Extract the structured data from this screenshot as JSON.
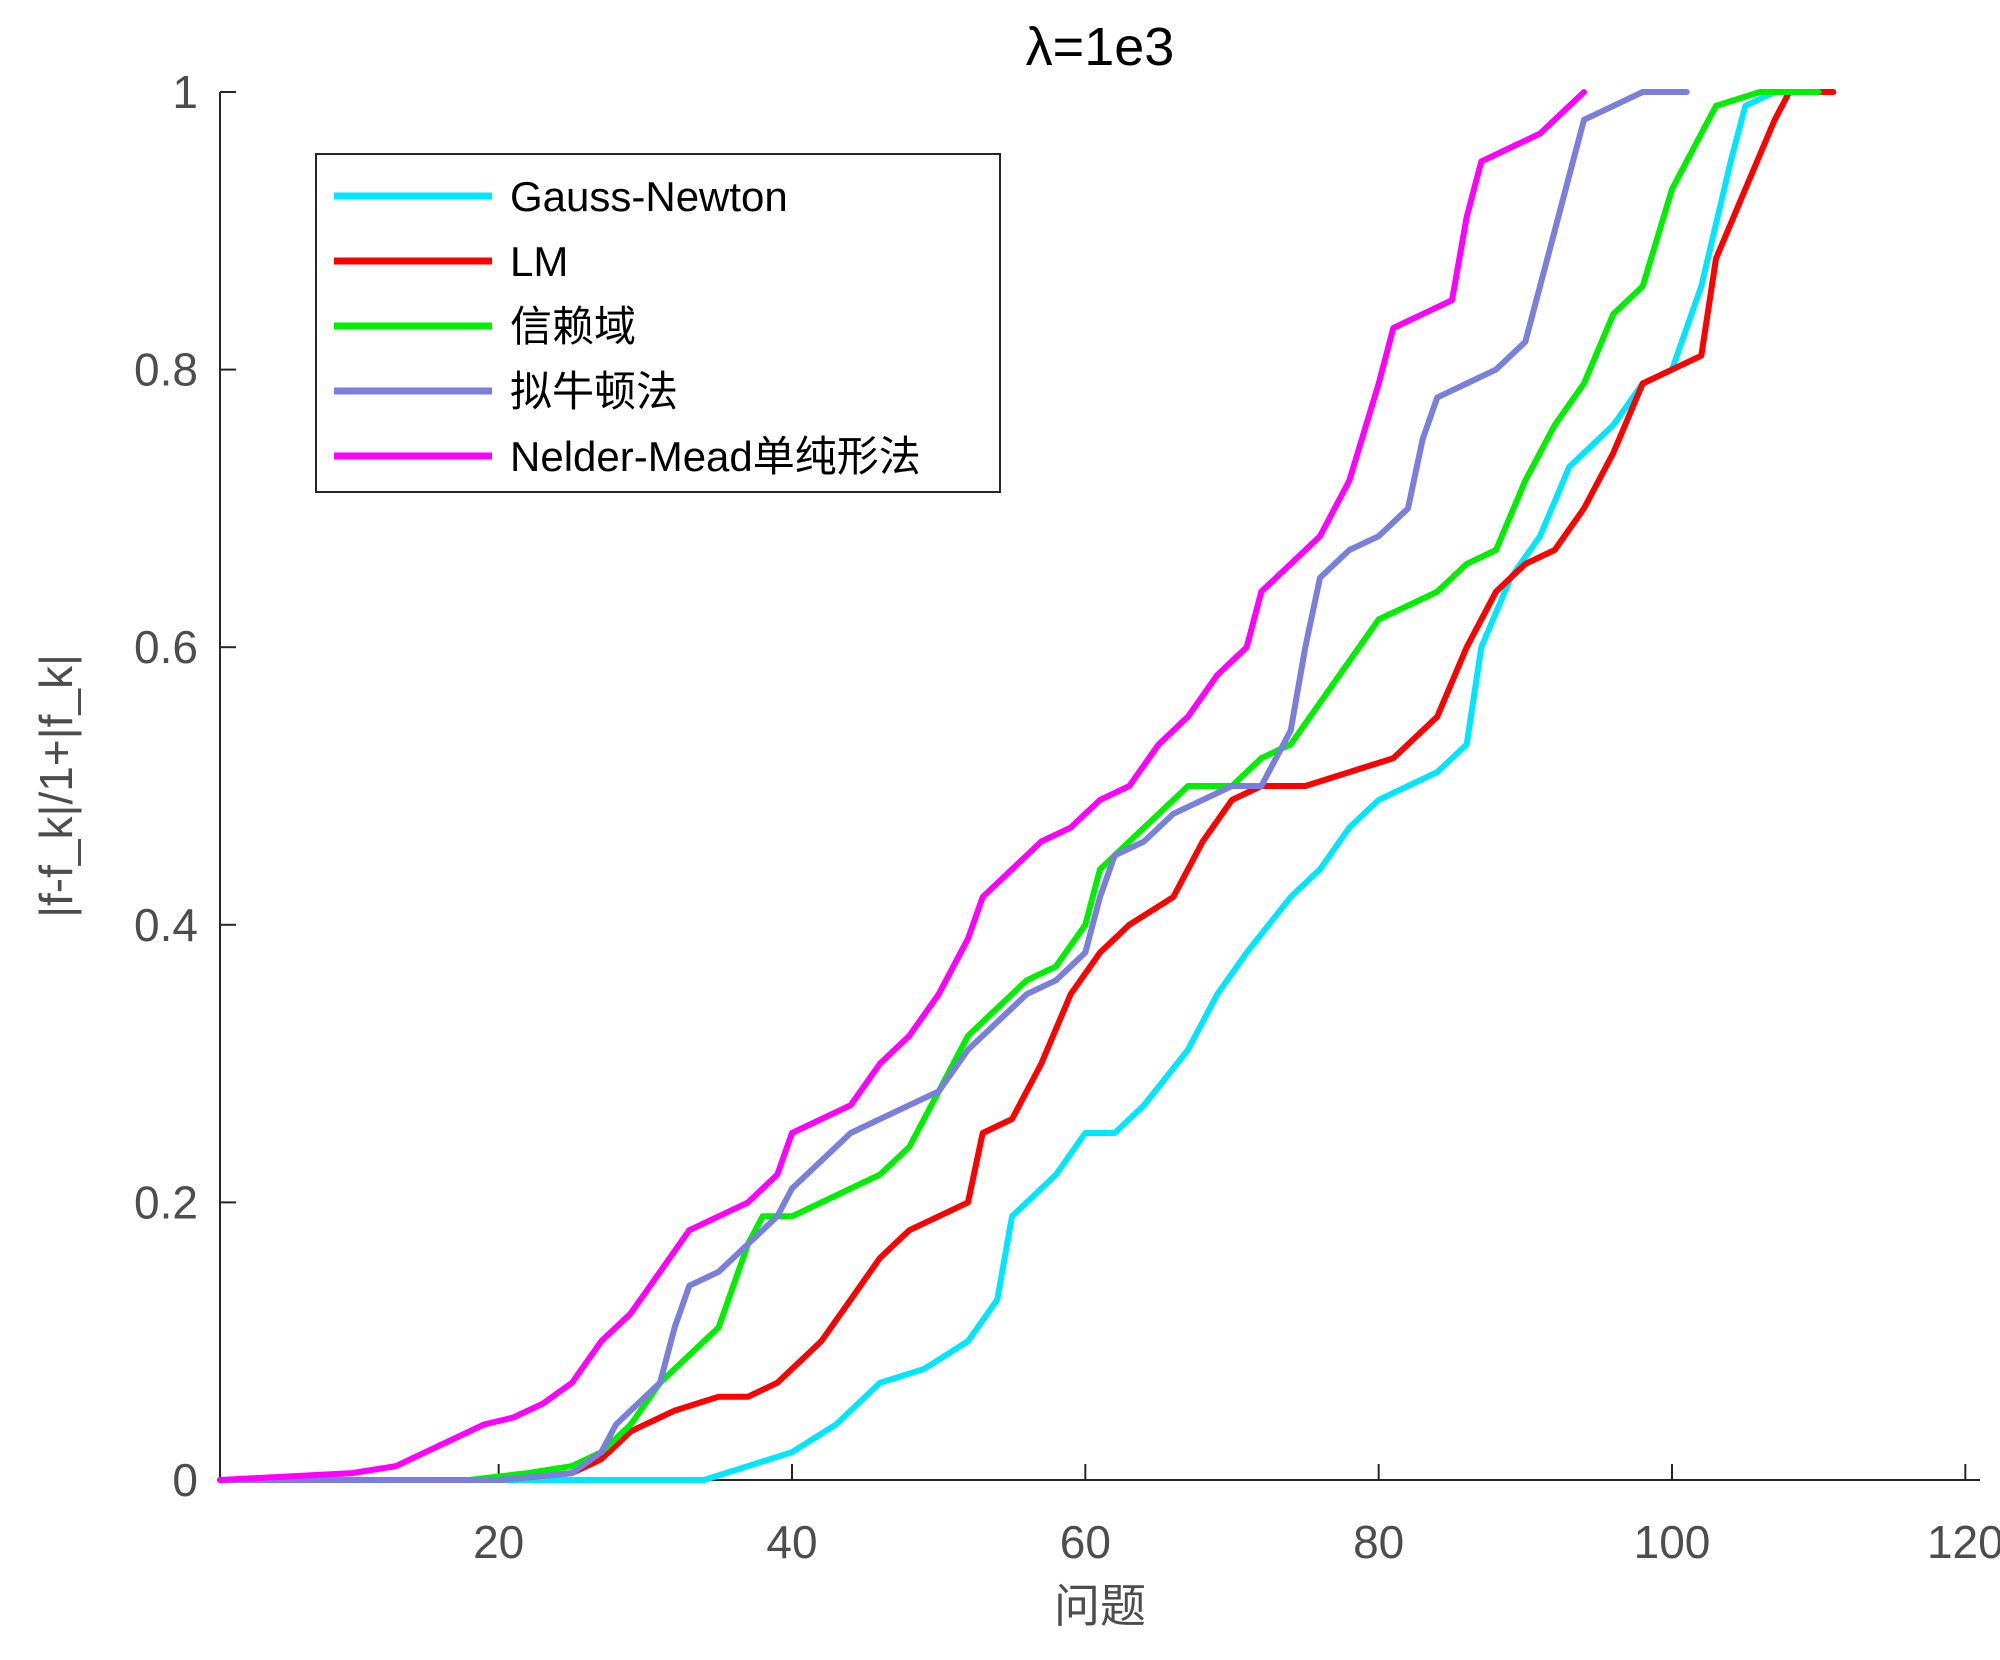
{
  "chart_data": {
    "type": "line",
    "title": "λ=1e3",
    "xlabel": "问题",
    "ylabel": "|f-f_k|/1+|f_k|",
    "xlim": [
      1,
      121
    ],
    "ylim": [
      0,
      1
    ],
    "xticks": [
      20,
      40,
      60,
      80,
      100,
      120
    ],
    "xtick_labels": [
      "20",
      "40",
      "60",
      "80",
      "100",
      "120"
    ],
    "yticks": [
      0,
      0.2,
      0.4,
      0.6,
      0.8,
      1
    ],
    "ytick_labels": [
      "0",
      "0.2",
      "0.4",
      "0.6",
      "0.8",
      "1"
    ],
    "grid": false,
    "legend_position": "top-left",
    "series": [
      {
        "name": "Gauss-Newton",
        "color": "#00e6ff",
        "points": [
          [
            1,
            0
          ],
          [
            20,
            0
          ],
          [
            34,
            0
          ],
          [
            37,
            0.01
          ],
          [
            40,
            0.02
          ],
          [
            43,
            0.04
          ],
          [
            46,
            0.07
          ],
          [
            49,
            0.08
          ],
          [
            52,
            0.1
          ],
          [
            54,
            0.13
          ],
          [
            55,
            0.19
          ],
          [
            56,
            0.2
          ],
          [
            58,
            0.22
          ],
          [
            60,
            0.25
          ],
          [
            62,
            0.25
          ],
          [
            64,
            0.27
          ],
          [
            67,
            0.31
          ],
          [
            69,
            0.35
          ],
          [
            71,
            0.38
          ],
          [
            74,
            0.42
          ],
          [
            76,
            0.44
          ],
          [
            78,
            0.47
          ],
          [
            80,
            0.49
          ],
          [
            82,
            0.5
          ],
          [
            84,
            0.51
          ],
          [
            86,
            0.53
          ],
          [
            87,
            0.6
          ],
          [
            89,
            0.65
          ],
          [
            91,
            0.68
          ],
          [
            93,
            0.73
          ],
          [
            94,
            0.74
          ],
          [
            96,
            0.76
          ],
          [
            98,
            0.79
          ],
          [
            100,
            0.8
          ],
          [
            102,
            0.86
          ],
          [
            104,
            0.95
          ],
          [
            105,
            0.99
          ],
          [
            107,
            1.0
          ],
          [
            109,
            1.0
          ]
        ]
      },
      {
        "name": "LM",
        "color": "#ff0000",
        "points": [
          [
            1,
            0
          ],
          [
            20,
            0
          ],
          [
            25,
            0.005
          ],
          [
            27,
            0.015
          ],
          [
            29,
            0.035
          ],
          [
            32,
            0.05
          ],
          [
            35,
            0.06
          ],
          [
            37,
            0.06
          ],
          [
            39,
            0.07
          ],
          [
            42,
            0.1
          ],
          [
            44,
            0.13
          ],
          [
            46,
            0.16
          ],
          [
            48,
            0.18
          ],
          [
            50,
            0.19
          ],
          [
            52,
            0.2
          ],
          [
            53,
            0.25
          ],
          [
            55,
            0.26
          ],
          [
            57,
            0.3
          ],
          [
            59,
            0.35
          ],
          [
            61,
            0.38
          ],
          [
            63,
            0.4
          ],
          [
            66,
            0.42
          ],
          [
            68,
            0.46
          ],
          [
            70,
            0.49
          ],
          [
            72,
            0.5
          ],
          [
            75,
            0.5
          ],
          [
            78,
            0.51
          ],
          [
            81,
            0.52
          ],
          [
            84,
            0.55
          ],
          [
            86,
            0.6
          ],
          [
            88,
            0.64
          ],
          [
            90,
            0.66
          ],
          [
            92,
            0.67
          ],
          [
            94,
            0.7
          ],
          [
            96,
            0.74
          ],
          [
            98,
            0.79
          ],
          [
            100,
            0.8
          ],
          [
            102,
            0.81
          ],
          [
            103,
            0.88
          ],
          [
            105,
            0.93
          ],
          [
            107,
            0.98
          ],
          [
            108,
            1.0
          ],
          [
            111,
            1.0
          ]
        ]
      },
      {
        "name": "信赖域",
        "color": "#00ee00",
        "points": [
          [
            1,
            0
          ],
          [
            18,
            0
          ],
          [
            22,
            0.005
          ],
          [
            25,
            0.01
          ],
          [
            27,
            0.02
          ],
          [
            29,
            0.04
          ],
          [
            31,
            0.07
          ],
          [
            33,
            0.09
          ],
          [
            35,
            0.11
          ],
          [
            36,
            0.14
          ],
          [
            37,
            0.17
          ],
          [
            38,
            0.19
          ],
          [
            40,
            0.19
          ],
          [
            42,
            0.2
          ],
          [
            44,
            0.21
          ],
          [
            46,
            0.22
          ],
          [
            48,
            0.24
          ],
          [
            50,
            0.28
          ],
          [
            52,
            0.32
          ],
          [
            54,
            0.34
          ],
          [
            56,
            0.36
          ],
          [
            58,
            0.37
          ],
          [
            60,
            0.4
          ],
          [
            61,
            0.44
          ],
          [
            63,
            0.46
          ],
          [
            65,
            0.48
          ],
          [
            67,
            0.5
          ],
          [
            70,
            0.5
          ],
          [
            72,
            0.52
          ],
          [
            74,
            0.53
          ],
          [
            76,
            0.56
          ],
          [
            78,
            0.59
          ],
          [
            80,
            0.62
          ],
          [
            82,
            0.63
          ],
          [
            84,
            0.64
          ],
          [
            86,
            0.66
          ],
          [
            88,
            0.67
          ],
          [
            90,
            0.72
          ],
          [
            92,
            0.76
          ],
          [
            94,
            0.79
          ],
          [
            96,
            0.84
          ],
          [
            98,
            0.86
          ],
          [
            100,
            0.93
          ],
          [
            102,
            0.97
          ],
          [
            103,
            0.99
          ],
          [
            106,
            1.0
          ],
          [
            110,
            1.0
          ]
        ]
      },
      {
        "name": "拟牛顿法",
        "color": "#7a7fdc",
        "points": [
          [
            1,
            0
          ],
          [
            20,
            0
          ],
          [
            25,
            0.005
          ],
          [
            27,
            0.02
          ],
          [
            28,
            0.04
          ],
          [
            30,
            0.06
          ],
          [
            31,
            0.07
          ],
          [
            32,
            0.11
          ],
          [
            33,
            0.14
          ],
          [
            35,
            0.15
          ],
          [
            37,
            0.17
          ],
          [
            39,
            0.19
          ],
          [
            40,
            0.21
          ],
          [
            42,
            0.23
          ],
          [
            44,
            0.25
          ],
          [
            46,
            0.26
          ],
          [
            48,
            0.27
          ],
          [
            50,
            0.28
          ],
          [
            52,
            0.31
          ],
          [
            54,
            0.33
          ],
          [
            56,
            0.35
          ],
          [
            58,
            0.36
          ],
          [
            60,
            0.38
          ],
          [
            61,
            0.42
          ],
          [
            62,
            0.45
          ],
          [
            64,
            0.46
          ],
          [
            66,
            0.48
          ],
          [
            68,
            0.49
          ],
          [
            70,
            0.5
          ],
          [
            72,
            0.5
          ],
          [
            74,
            0.54
          ],
          [
            75,
            0.6
          ],
          [
            76,
            0.65
          ],
          [
            78,
            0.67
          ],
          [
            80,
            0.68
          ],
          [
            82,
            0.7
          ],
          [
            83,
            0.75
          ],
          [
            84,
            0.78
          ],
          [
            86,
            0.79
          ],
          [
            88,
            0.8
          ],
          [
            90,
            0.82
          ],
          [
            91,
            0.86
          ],
          [
            92,
            0.9
          ],
          [
            93,
            0.94
          ],
          [
            94,
            0.98
          ],
          [
            96,
            0.99
          ],
          [
            98,
            1.0
          ],
          [
            101,
            1.0
          ]
        ]
      },
      {
        "name": "Nelder-Mead单纯形法",
        "color": "#ff00ff",
        "points": [
          [
            1,
            0
          ],
          [
            10,
            0.005
          ],
          [
            13,
            0.01
          ],
          [
            15,
            0.02
          ],
          [
            17,
            0.03
          ],
          [
            19,
            0.04
          ],
          [
            21,
            0.045
          ],
          [
            23,
            0.055
          ],
          [
            25,
            0.07
          ],
          [
            27,
            0.1
          ],
          [
            29,
            0.12
          ],
          [
            31,
            0.15
          ],
          [
            33,
            0.18
          ],
          [
            35,
            0.19
          ],
          [
            37,
            0.2
          ],
          [
            39,
            0.22
          ],
          [
            40,
            0.25
          ],
          [
            42,
            0.26
          ],
          [
            44,
            0.27
          ],
          [
            46,
            0.3
          ],
          [
            48,
            0.32
          ],
          [
            50,
            0.35
          ],
          [
            52,
            0.39
          ],
          [
            53,
            0.42
          ],
          [
            55,
            0.44
          ],
          [
            57,
            0.46
          ],
          [
            59,
            0.47
          ],
          [
            61,
            0.49
          ],
          [
            63,
            0.5
          ],
          [
            65,
            0.53
          ],
          [
            67,
            0.55
          ],
          [
            69,
            0.58
          ],
          [
            71,
            0.6
          ],
          [
            72,
            0.64
          ],
          [
            74,
            0.66
          ],
          [
            76,
            0.68
          ],
          [
            78,
            0.72
          ],
          [
            80,
            0.79
          ],
          [
            81,
            0.83
          ],
          [
            83,
            0.84
          ],
          [
            85,
            0.85
          ],
          [
            86,
            0.91
          ],
          [
            87,
            0.95
          ],
          [
            89,
            0.96
          ],
          [
            91,
            0.97
          ],
          [
            93,
            0.99
          ],
          [
            94,
            1.0
          ]
        ]
      }
    ]
  }
}
